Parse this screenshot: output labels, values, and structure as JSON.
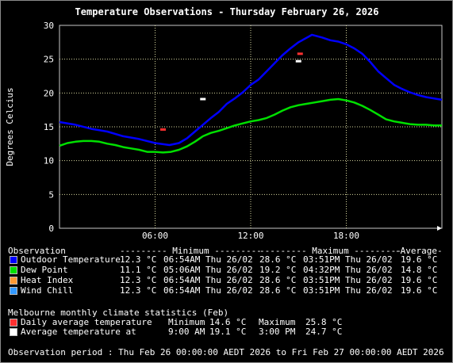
{
  "chart_data": {
    "type": "line",
    "title": "Temperature Observations - Thursday February 26, 2026",
    "ylabel": "Degrees Celcius",
    "xlabel": "",
    "x_ticks": [
      "06:00",
      "12:00",
      "18:00"
    ],
    "xlim_hours": [
      0,
      24
    ],
    "y_ticks": [
      0,
      5,
      10,
      15,
      20,
      25,
      30
    ],
    "ylim": [
      0,
      30
    ],
    "grid": true,
    "series": [
      {
        "name": "Outdoor Temperature",
        "color": "#0000ff",
        "x": [
          0,
          1,
          2,
          3,
          4,
          5,
          6,
          6.9,
          7.5,
          8,
          8.5,
          9,
          9.5,
          10,
          10.5,
          11,
          11.5,
          12,
          12.5,
          13,
          13.5,
          14,
          14.5,
          15,
          15.85,
          16.5,
          17,
          17.5,
          18,
          18.5,
          19,
          19.5,
          20,
          20.5,
          21,
          21.5,
          22,
          22.5,
          23,
          24
        ],
        "y": [
          15.7,
          15.3,
          14.7,
          14.3,
          13.6,
          13.2,
          12.6,
          12.3,
          12.6,
          13.3,
          14.3,
          15.3,
          16.3,
          17.2,
          18.4,
          19.2,
          20.1,
          21.2,
          22.0,
          23.2,
          24.4,
          25.6,
          26.6,
          27.5,
          28.6,
          28.2,
          27.8,
          27.6,
          27.2,
          26.6,
          25.8,
          24.6,
          23.2,
          22.2,
          21.2,
          20.6,
          20.1,
          19.7,
          19.4,
          19.0
        ]
      },
      {
        "name": "Dew Point",
        "color": "#00e000",
        "x": [
          0,
          0.5,
          1,
          1.5,
          2,
          2.5,
          3,
          3.5,
          4,
          4.5,
          5,
          5.5,
          6,
          6.5,
          7,
          7.5,
          8,
          8.5,
          9,
          9.5,
          10,
          10.5,
          11,
          11.5,
          12,
          12.5,
          13,
          13.5,
          14,
          14.5,
          15,
          15.5,
          16,
          16.5,
          17,
          17.5,
          18,
          18.5,
          19,
          19.5,
          20,
          20.5,
          21,
          21.5,
          22,
          22.5,
          23,
          23.5,
          24
        ],
        "y": [
          12.2,
          12.6,
          12.8,
          12.9,
          12.9,
          12.8,
          12.5,
          12.3,
          12.0,
          11.8,
          11.6,
          11.3,
          11.3,
          11.2,
          11.3,
          11.6,
          12.1,
          12.8,
          13.6,
          14.1,
          14.4,
          14.8,
          15.2,
          15.5,
          15.8,
          16.0,
          16.3,
          16.8,
          17.4,
          17.9,
          18.2,
          18.4,
          18.6,
          18.8,
          19.0,
          19.1,
          18.9,
          18.6,
          18.1,
          17.5,
          16.8,
          16.1,
          15.8,
          15.6,
          15.4,
          15.3,
          15.3,
          15.2,
          15.2
        ]
      }
    ],
    "markers": [
      {
        "name": "Daily average temperature",
        "color": "#ff3030",
        "values": [
          {
            "x": 6.5,
            "y": 14.6
          },
          {
            "x": 15.1,
            "y": 25.8
          }
        ]
      },
      {
        "name": "Average temperature at",
        "color": "#ffffff",
        "values": [
          {
            "x": 9.0,
            "y": 19.1
          },
          {
            "x": 15.0,
            "y": 24.7
          }
        ]
      }
    ]
  },
  "table": {
    "header": {
      "observation": "Observation",
      "minimum": "--------- Minimum ---------",
      "maximum": "--------- Maximum ---------",
      "average": "-Average-"
    },
    "rows": [
      {
        "label": "Outdoor Temperature",
        "color": "#0000ff",
        "min_val": "12.3 °C",
        "min_time": "06:54AM Thu 26/02",
        "max_val": "28.6 °C",
        "max_time": "03:51PM Thu 26/02",
        "avg": "19.6 °C"
      },
      {
        "label": "Dew Point",
        "color": "#00e000",
        "min_val": "11.1 °C",
        "min_time": "05:06AM Thu 26/02",
        "max_val": "19.2 °C",
        "max_time": "04:32PM Thu 26/02",
        "avg": "14.8 °C"
      },
      {
        "label": "Heat Index",
        "color": "#ff9933",
        "min_val": "12.3 °C",
        "min_time": "06:54AM Thu 26/02",
        "max_val": "28.6 °C",
        "max_time": "03:51PM Thu 26/02",
        "avg": "19.6 °C"
      },
      {
        "label": "Wind Chill",
        "color": "#3399ff",
        "min_val": "12.3 °C",
        "min_time": "06:54AM Thu 26/02",
        "max_val": "28.6 °C",
        "max_time": "03:51PM Thu 26/02",
        "avg": "19.6 °C"
      }
    ]
  },
  "climate": {
    "title": "Melbourne monthly climate statistics (Feb)",
    "rows": [
      {
        "label": "Daily average temperature",
        "color": "#ff3030",
        "col1": "Minimum",
        "col2": "14.6 °C",
        "col3": "Maximum",
        "col4": "25.8 °C"
      },
      {
        "label": "Average temperature at",
        "color": "#ffffff",
        "col1": "9:00 AM",
        "col2": "19.1 °C",
        "col3": "3:00 PM",
        "col4": "24.7 °C"
      }
    ]
  },
  "footer": "Observation period : Thu Feb 26 00:00:00 AEDT 2026 to Fri Feb 27 00:00:00 AEDT 2026"
}
